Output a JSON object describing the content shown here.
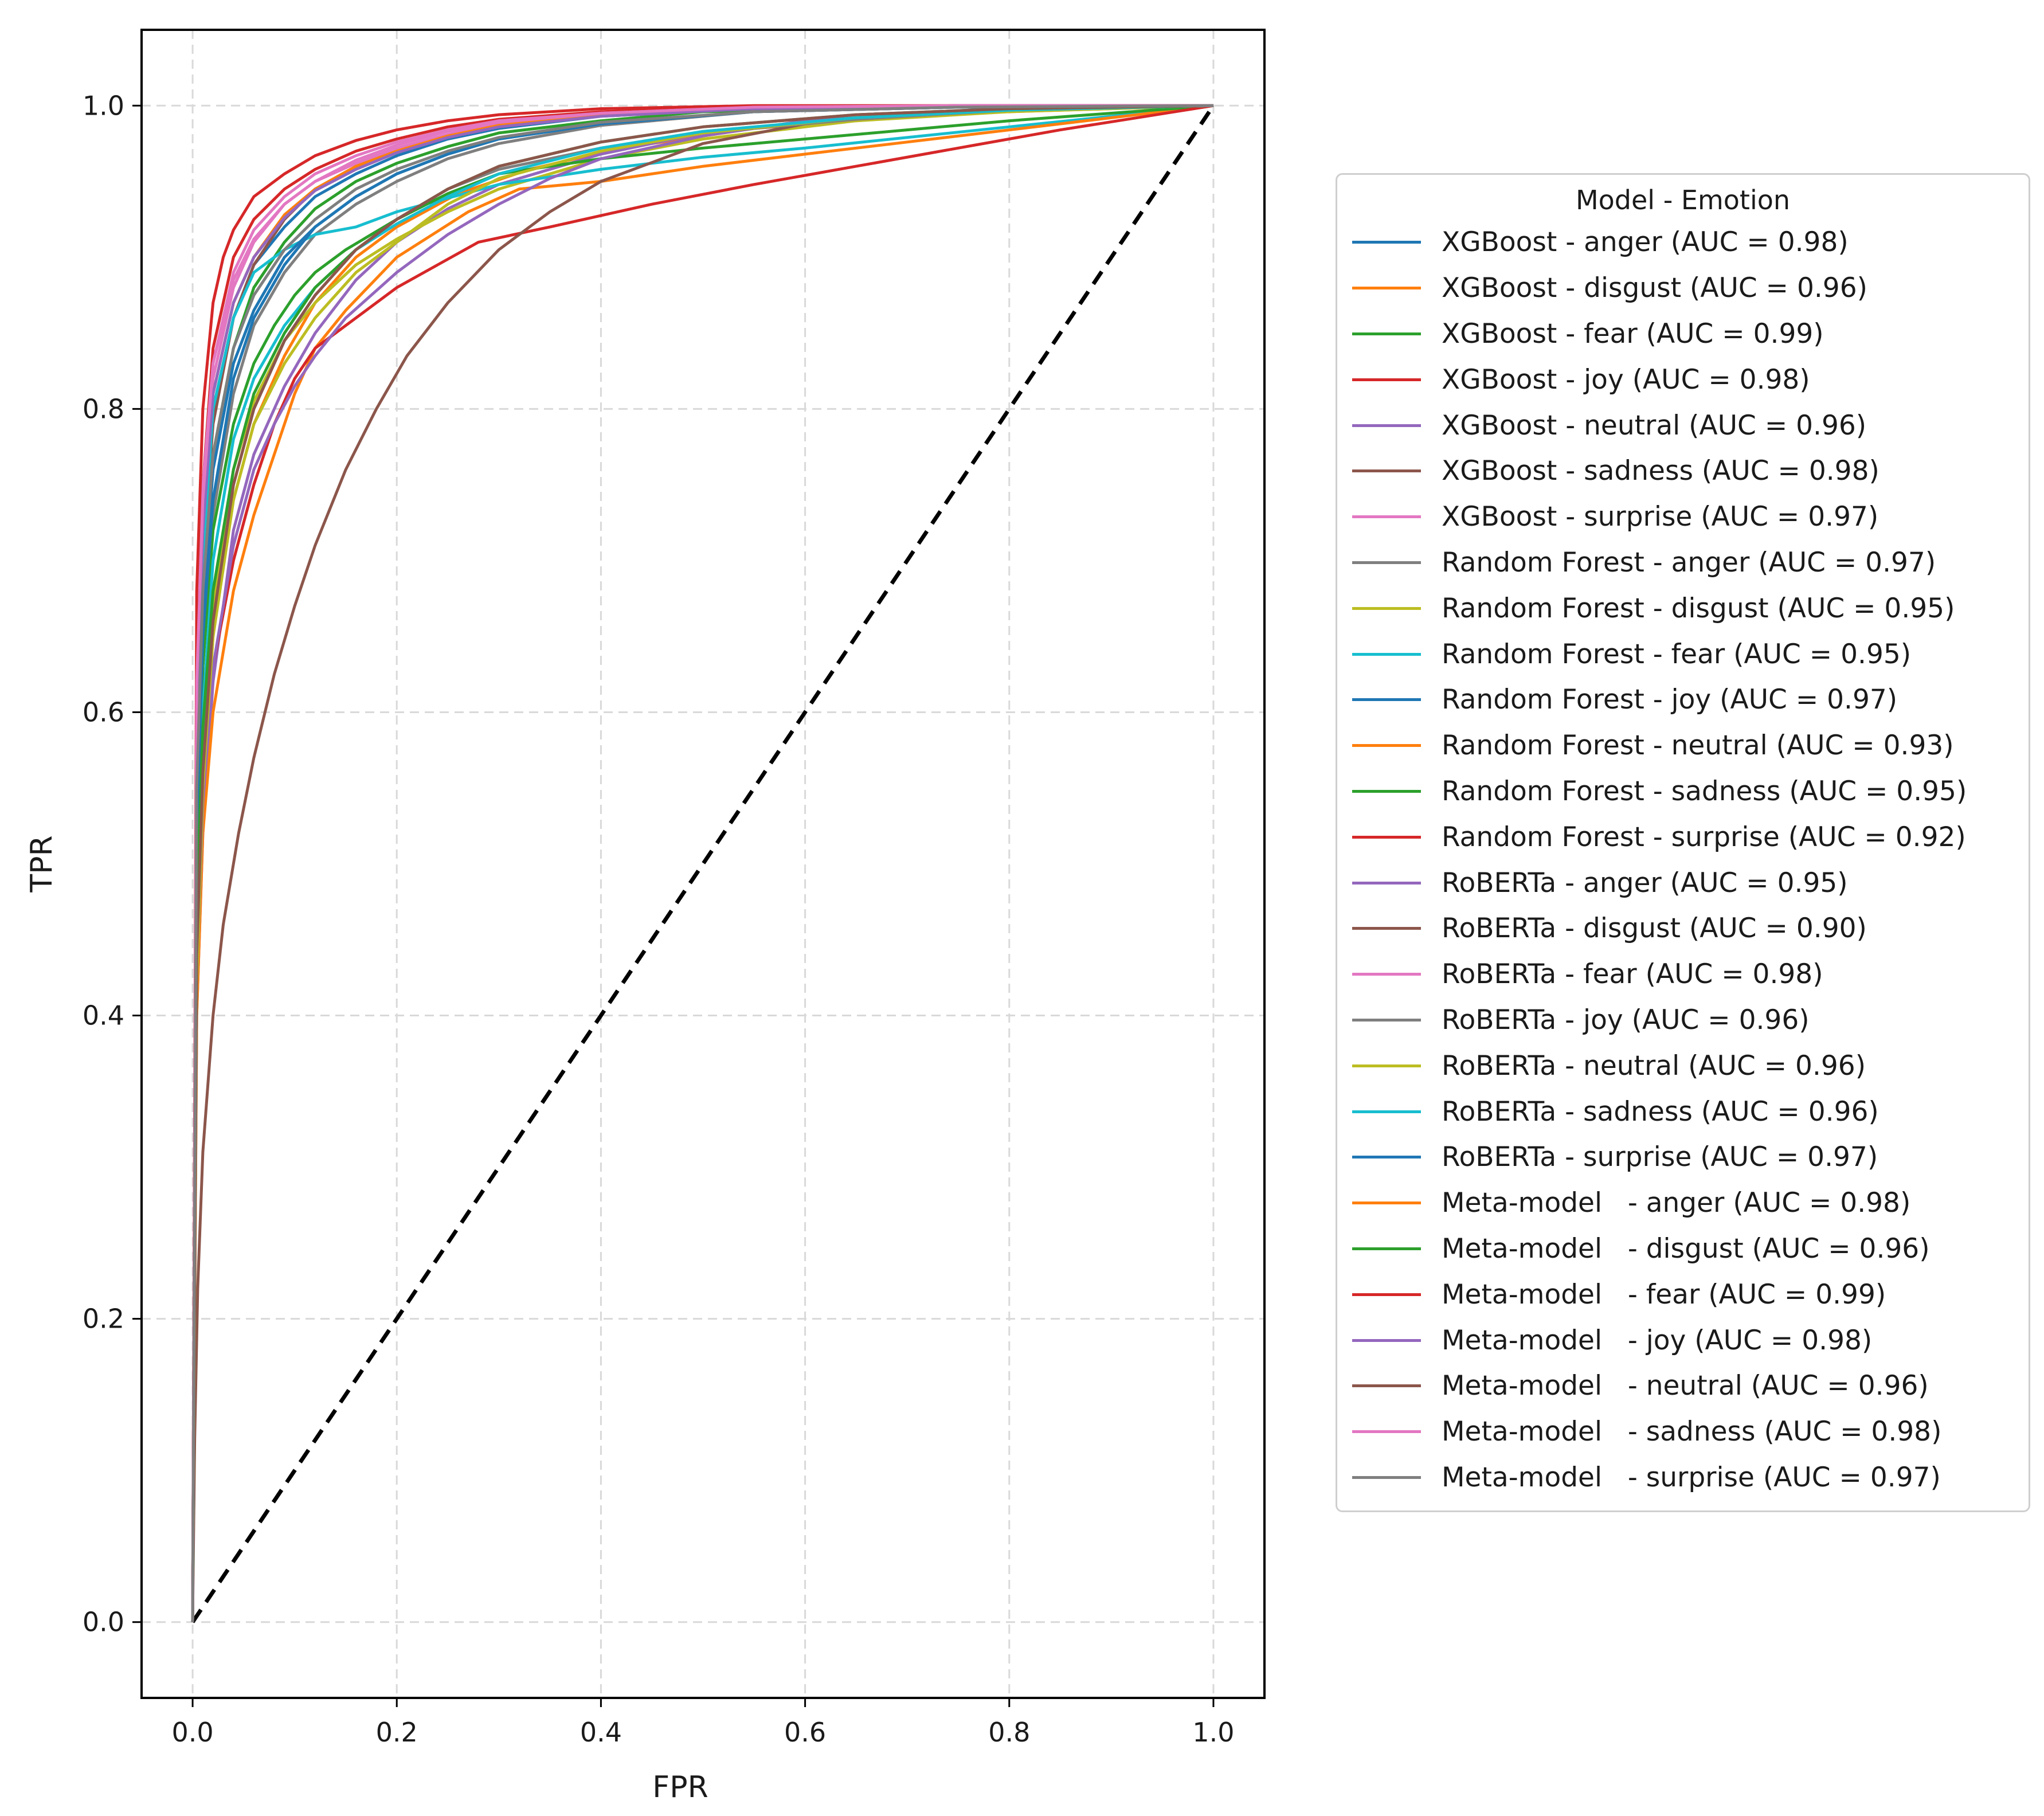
{
  "chart_data": {
    "type": "line",
    "title": "",
    "xlabel": "FPR",
    "ylabel": "TPR",
    "xlim": [
      -0.05,
      1.05
    ],
    "ylim": [
      -0.05,
      1.05
    ],
    "xticks": [
      "0.0",
      "0.2",
      "0.4",
      "0.6",
      "0.8",
      "1.0"
    ],
    "yticks": [
      "0.0",
      "0.2",
      "0.4",
      "0.6",
      "0.8",
      "1.0"
    ],
    "grid": true,
    "legend_title": "Model - Emotion",
    "legend_position": "right, outside plot",
    "diagonal": {
      "x": [
        0,
        1
      ],
      "y": [
        0,
        1
      ],
      "style": "dashed",
      "color": "#000000"
    },
    "series": [
      {
        "name": "XGBoost - anger (AUC = 0.98)",
        "color": "#1f77b4",
        "x": [
          0,
          0.004,
          0.01,
          0.02,
          0.04,
          0.06,
          0.09,
          0.12,
          0.16,
          0.2,
          0.25,
          0.3,
          0.4,
          0.55,
          0.75,
          1
        ],
        "y": [
          0,
          0.6,
          0.72,
          0.8,
          0.86,
          0.895,
          0.92,
          0.94,
          0.955,
          0.967,
          0.978,
          0.985,
          0.993,
          0.998,
          0.999,
          1
        ]
      },
      {
        "name": "XGBoost - disgust (AUC = 0.96)",
        "color": "#ff7f0e",
        "x": [
          0,
          0.004,
          0.01,
          0.02,
          0.04,
          0.06,
          0.09,
          0.12,
          0.16,
          0.2,
          0.26,
          0.33,
          0.42,
          0.55,
          0.75,
          1
        ],
        "y": [
          0,
          0.42,
          0.55,
          0.65,
          0.74,
          0.79,
          0.835,
          0.87,
          0.9,
          0.92,
          0.942,
          0.958,
          0.972,
          0.985,
          0.995,
          1
        ]
      },
      {
        "name": "XGBoost - fear (AUC = 0.99)",
        "color": "#2ca02c",
        "x": [
          0,
          0.004,
          0.01,
          0.02,
          0.04,
          0.06,
          0.09,
          0.12,
          0.16,
          0.2,
          0.25,
          0.3,
          0.4,
          0.5,
          0.7,
          1
        ],
        "y": [
          0,
          0.55,
          0.68,
          0.77,
          0.84,
          0.88,
          0.91,
          0.932,
          0.95,
          0.962,
          0.973,
          0.982,
          0.99,
          0.996,
          0.999,
          1
        ]
      },
      {
        "name": "XGBoost - joy (AUC = 0.98)",
        "color": "#d62728",
        "x": [
          0,
          0.004,
          0.01,
          0.02,
          0.04,
          0.06,
          0.09,
          0.12,
          0.16,
          0.2,
          0.25,
          0.3,
          0.4,
          0.55,
          0.75,
          1
        ],
        "y": [
          0,
          0.62,
          0.75,
          0.84,
          0.9,
          0.925,
          0.945,
          0.958,
          0.97,
          0.978,
          0.986,
          0.991,
          0.996,
          0.999,
          1,
          1
        ]
      },
      {
        "name": "XGBoost - neutral (AUC = 0.96)",
        "color": "#9467bd",
        "x": [
          0,
          0.004,
          0.01,
          0.02,
          0.04,
          0.06,
          0.09,
          0.12,
          0.16,
          0.2,
          0.25,
          0.3,
          0.4,
          0.5,
          0.7,
          1
        ],
        "y": [
          0,
          0.4,
          0.52,
          0.62,
          0.72,
          0.77,
          0.815,
          0.85,
          0.885,
          0.91,
          0.932,
          0.948,
          0.968,
          0.982,
          0.995,
          1
        ]
      },
      {
        "name": "XGBoost - sadness (AUC = 0.98)",
        "color": "#8c564b",
        "x": [
          0,
          0.004,
          0.01,
          0.02,
          0.04,
          0.06,
          0.09,
          0.12,
          0.16,
          0.2,
          0.25,
          0.3,
          0.4,
          0.55,
          0.75,
          1
        ],
        "y": [
          0,
          0.58,
          0.7,
          0.79,
          0.86,
          0.895,
          0.925,
          0.945,
          0.96,
          0.97,
          0.98,
          0.987,
          0.994,
          0.998,
          1,
          1
        ]
      },
      {
        "name": "XGBoost - surprise (AUC = 0.97)",
        "color": "#e377c2",
        "x": [
          0,
          0.004,
          0.01,
          0.02,
          0.04,
          0.06,
          0.09,
          0.12,
          0.16,
          0.2,
          0.25,
          0.3,
          0.4,
          0.55,
          0.75,
          1
        ],
        "y": [
          0,
          0.6,
          0.73,
          0.82,
          0.88,
          0.91,
          0.935,
          0.95,
          0.962,
          0.972,
          0.981,
          0.988,
          0.994,
          0.998,
          1,
          1
        ]
      },
      {
        "name": "Random Forest - anger (AUC = 0.97)",
        "color": "#7f7f7f",
        "x": [
          0,
          0.004,
          0.01,
          0.02,
          0.04,
          0.06,
          0.09,
          0.12,
          0.16,
          0.2,
          0.25,
          0.3,
          0.4,
          0.55,
          0.75,
          1
        ],
        "y": [
          0,
          0.5,
          0.63,
          0.73,
          0.81,
          0.855,
          0.89,
          0.915,
          0.935,
          0.95,
          0.965,
          0.975,
          0.987,
          0.996,
          0.999,
          1
        ]
      },
      {
        "name": "Random Forest - disgust (AUC = 0.95)",
        "color": "#bcbd22",
        "x": [
          0,
          0.004,
          0.01,
          0.02,
          0.04,
          0.06,
          0.09,
          0.12,
          0.16,
          0.2,
          0.25,
          0.3,
          0.4,
          0.5,
          0.65,
          0.8,
          1
        ],
        "y": [
          0,
          0.45,
          0.57,
          0.67,
          0.76,
          0.805,
          0.845,
          0.87,
          0.895,
          0.912,
          0.93,
          0.945,
          0.965,
          0.978,
          0.99,
          0.996,
          1
        ]
      },
      {
        "name": "Random Forest - fear (AUC = 0.95)",
        "color": "#17becf",
        "x": [
          0,
          0.004,
          0.01,
          0.02,
          0.04,
          0.06,
          0.09,
          0.12,
          0.16,
          0.2,
          0.3,
          0.4,
          0.5,
          0.6,
          0.8,
          1
        ],
        "y": [
          0,
          0.55,
          0.7,
          0.8,
          0.86,
          0.89,
          0.905,
          0.915,
          0.92,
          0.93,
          0.948,
          0.958,
          0.966,
          0.972,
          0.986,
          1
        ]
      },
      {
        "name": "Random Forest - joy (AUC = 0.97)",
        "color": "#1f77b4",
        "x": [
          0,
          0.004,
          0.01,
          0.02,
          0.04,
          0.06,
          0.09,
          0.12,
          0.16,
          0.2,
          0.25,
          0.3,
          0.4,
          0.55,
          0.75,
          1
        ],
        "y": [
          0,
          0.55,
          0.67,
          0.76,
          0.83,
          0.865,
          0.9,
          0.92,
          0.94,
          0.955,
          0.968,
          0.978,
          0.988,
          0.996,
          0.999,
          1
        ]
      },
      {
        "name": "Random Forest - neutral (AUC = 0.93)",
        "color": "#ff7f0e",
        "x": [
          0,
          0.004,
          0.01,
          0.02,
          0.04,
          0.06,
          0.08,
          0.1,
          0.12,
          0.15,
          0.2,
          0.27,
          0.32,
          0.4,
          0.5,
          0.6,
          0.7,
          0.8,
          0.9,
          1
        ],
        "y": [
          0,
          0.4,
          0.52,
          0.6,
          0.68,
          0.73,
          0.77,
          0.81,
          0.84,
          0.865,
          0.9,
          0.93,
          0.945,
          0.95,
          0.96,
          0.968,
          0.976,
          0.984,
          0.992,
          1
        ]
      },
      {
        "name": "Random Forest - sadness (AUC = 0.95)",
        "color": "#2ca02c",
        "x": [
          0,
          0.004,
          0.01,
          0.02,
          0.04,
          0.06,
          0.08,
          0.1,
          0.12,
          0.15,
          0.2,
          0.25,
          0.3,
          0.4,
          0.5,
          0.6,
          0.7,
          0.8,
          0.9,
          1
        ],
        "y": [
          0,
          0.5,
          0.63,
          0.72,
          0.79,
          0.83,
          0.855,
          0.875,
          0.89,
          0.905,
          0.925,
          0.942,
          0.955,
          0.965,
          0.972,
          0.978,
          0.984,
          0.99,
          0.995,
          1
        ]
      },
      {
        "name": "Random Forest - surprise (AUC = 0.92)",
        "color": "#d62728",
        "x": [
          0,
          0.004,
          0.01,
          0.02,
          0.04,
          0.06,
          0.08,
          0.1,
          0.12,
          0.16,
          0.2,
          0.24,
          0.28,
          0.35,
          0.45,
          0.55,
          0.65,
          0.75,
          0.85,
          1
        ],
        "y": [
          0,
          0.45,
          0.55,
          0.63,
          0.7,
          0.75,
          0.79,
          0.82,
          0.84,
          0.86,
          0.88,
          0.895,
          0.91,
          0.92,
          0.935,
          0.948,
          0.96,
          0.972,
          0.984,
          1
        ]
      },
      {
        "name": "RoBERTa - anger (AUC = 0.95)",
        "color": "#9467bd",
        "x": [
          0,
          0.004,
          0.01,
          0.02,
          0.04,
          0.06,
          0.08,
          0.1,
          0.12,
          0.15,
          0.2,
          0.25,
          0.3,
          0.35,
          0.4,
          0.5,
          0.6,
          0.8,
          1
        ],
        "y": [
          0,
          0.42,
          0.54,
          0.63,
          0.71,
          0.76,
          0.79,
          0.815,
          0.835,
          0.86,
          0.89,
          0.915,
          0.935,
          0.952,
          0.965,
          0.98,
          0.99,
          0.998,
          1
        ]
      },
      {
        "name": "RoBERTa - disgust (AUC = 0.90)",
        "color": "#8c564b",
        "x": [
          0,
          0.002,
          0.005,
          0.01,
          0.02,
          0.03,
          0.045,
          0.06,
          0.08,
          0.1,
          0.12,
          0.15,
          0.18,
          0.21,
          0.25,
          0.3,
          0.35,
          0.4,
          0.5,
          0.6,
          0.7,
          0.85,
          1
        ],
        "y": [
          0,
          0.12,
          0.22,
          0.31,
          0.4,
          0.46,
          0.52,
          0.57,
          0.625,
          0.67,
          0.71,
          0.76,
          0.8,
          0.835,
          0.87,
          0.905,
          0.93,
          0.95,
          0.975,
          0.988,
          0.995,
          0.999,
          1
        ]
      },
      {
        "name": "RoBERTa - fear (AUC = 0.98)",
        "color": "#e377c2",
        "x": [
          0,
          0.004,
          0.01,
          0.02,
          0.04,
          0.06,
          0.09,
          0.12,
          0.16,
          0.2,
          0.25,
          0.3,
          0.4,
          0.55,
          0.75,
          1
        ],
        "y": [
          0,
          0.62,
          0.75,
          0.83,
          0.89,
          0.918,
          0.94,
          0.955,
          0.967,
          0.976,
          0.984,
          0.99,
          0.995,
          0.999,
          1,
          1
        ]
      },
      {
        "name": "RoBERTa - joy (AUC = 0.96)",
        "color": "#7f7f7f",
        "x": [
          0,
          0.004,
          0.01,
          0.02,
          0.04,
          0.06,
          0.09,
          0.12,
          0.16,
          0.2,
          0.25,
          0.3,
          0.4,
          0.5,
          0.65,
          0.8,
          1
        ],
        "y": [
          0,
          0.45,
          0.57,
          0.66,
          0.75,
          0.8,
          0.845,
          0.875,
          0.905,
          0.925,
          0.945,
          0.958,
          0.972,
          0.982,
          0.991,
          0.997,
          1
        ]
      },
      {
        "name": "RoBERTa - neutral (AUC = 0.96)",
        "color": "#bcbd22",
        "x": [
          0,
          0.004,
          0.01,
          0.02,
          0.04,
          0.06,
          0.09,
          0.12,
          0.16,
          0.2,
          0.25,
          0.3,
          0.4,
          0.5,
          0.65,
          0.8,
          1
        ],
        "y": [
          0,
          0.42,
          0.55,
          0.65,
          0.74,
          0.79,
          0.83,
          0.86,
          0.89,
          0.91,
          0.935,
          0.952,
          0.97,
          0.982,
          0.992,
          0.997,
          1
        ]
      },
      {
        "name": "RoBERTa - sadness (AUC = 0.96)",
        "color": "#17becf",
        "x": [
          0,
          0.004,
          0.01,
          0.02,
          0.04,
          0.06,
          0.09,
          0.12,
          0.16,
          0.2,
          0.25,
          0.3,
          0.4,
          0.5,
          0.65,
          0.8,
          1
        ],
        "y": [
          0,
          0.48,
          0.6,
          0.7,
          0.78,
          0.82,
          0.855,
          0.88,
          0.905,
          0.922,
          0.94,
          0.955,
          0.972,
          0.983,
          0.992,
          0.997,
          1
        ]
      },
      {
        "name": "RoBERTa - surprise (AUC = 0.97)",
        "color": "#1f77b4",
        "x": [
          0,
          0.004,
          0.01,
          0.02,
          0.04,
          0.06,
          0.09,
          0.12,
          0.16,
          0.2,
          0.25,
          0.3,
          0.4,
          0.55,
          0.75,
          1
        ],
        "y": [
          0,
          0.52,
          0.65,
          0.74,
          0.82,
          0.86,
          0.895,
          0.92,
          0.94,
          0.955,
          0.968,
          0.978,
          0.988,
          0.996,
          0.999,
          1
        ]
      },
      {
        "name": "Meta-model   - anger (AUC = 0.98)",
        "color": "#ff7f0e",
        "x": [
          0,
          0.004,
          0.01,
          0.02,
          0.04,
          0.06,
          0.09,
          0.12,
          0.16,
          0.2,
          0.25,
          0.3,
          0.4,
          0.55,
          0.75,
          1
        ],
        "y": [
          0,
          0.6,
          0.73,
          0.81,
          0.87,
          0.9,
          0.928,
          0.945,
          0.96,
          0.97,
          0.98,
          0.987,
          0.994,
          0.998,
          1,
          1
        ]
      },
      {
        "name": "Meta-model   - disgust (AUC = 0.96)",
        "color": "#2ca02c",
        "x": [
          0,
          0.004,
          0.01,
          0.02,
          0.04,
          0.06,
          0.09,
          0.12,
          0.16,
          0.2,
          0.25,
          0.3,
          0.4,
          0.5,
          0.65,
          0.8,
          1
        ],
        "y": [
          0,
          0.47,
          0.59,
          0.68,
          0.76,
          0.81,
          0.85,
          0.88,
          0.905,
          0.925,
          0.945,
          0.96,
          0.976,
          0.986,
          0.994,
          0.998,
          1
        ]
      },
      {
        "name": "Meta-model   - fear (AUC = 0.99)",
        "color": "#d62728",
        "x": [
          0,
          0.004,
          0.01,
          0.02,
          0.03,
          0.04,
          0.06,
          0.09,
          0.12,
          0.16,
          0.2,
          0.25,
          0.3,
          0.4,
          0.55,
          0.75,
          1
        ],
        "y": [
          0,
          0.68,
          0.8,
          0.87,
          0.9,
          0.918,
          0.94,
          0.955,
          0.967,
          0.977,
          0.984,
          0.99,
          0.994,
          0.998,
          1,
          1,
          1
        ]
      },
      {
        "name": "Meta-model   - joy (AUC = 0.98)",
        "color": "#9467bd",
        "x": [
          0,
          0.004,
          0.01,
          0.02,
          0.04,
          0.06,
          0.09,
          0.12,
          0.16,
          0.2,
          0.25,
          0.3,
          0.4,
          0.55,
          0.75,
          1
        ],
        "y": [
          0,
          0.6,
          0.72,
          0.81,
          0.87,
          0.9,
          0.926,
          0.944,
          0.958,
          0.969,
          0.979,
          0.986,
          0.993,
          0.998,
          1,
          1
        ]
      },
      {
        "name": "Meta-model   - neutral (AUC = 0.96)",
        "color": "#8c564b",
        "x": [
          0,
          0.004,
          0.01,
          0.02,
          0.04,
          0.06,
          0.09,
          0.12,
          0.16,
          0.2,
          0.25,
          0.3,
          0.4,
          0.5,
          0.65,
          0.8,
          1
        ],
        "y": [
          0,
          0.44,
          0.56,
          0.66,
          0.75,
          0.8,
          0.845,
          0.875,
          0.905,
          0.925,
          0.945,
          0.96,
          0.976,
          0.986,
          0.994,
          0.998,
          1
        ]
      },
      {
        "name": "Meta-model   - sadness (AUC = 0.98)",
        "color": "#e377c2",
        "x": [
          0,
          0.004,
          0.01,
          0.02,
          0.04,
          0.06,
          0.09,
          0.12,
          0.16,
          0.2,
          0.25,
          0.3,
          0.4,
          0.55,
          0.75,
          1
        ],
        "y": [
          0,
          0.62,
          0.74,
          0.83,
          0.885,
          0.912,
          0.935,
          0.95,
          0.964,
          0.974,
          0.983,
          0.989,
          0.995,
          0.999,
          1,
          1
        ]
      },
      {
        "name": "Meta-model   - surprise (AUC = 0.97)",
        "color": "#7f7f7f",
        "x": [
          0,
          0.004,
          0.01,
          0.02,
          0.04,
          0.06,
          0.09,
          0.12,
          0.16,
          0.2,
          0.25,
          0.3,
          0.4,
          0.55,
          0.75,
          1
        ],
        "y": [
          0,
          0.55,
          0.68,
          0.77,
          0.84,
          0.875,
          0.905,
          0.925,
          0.945,
          0.958,
          0.97,
          0.979,
          0.989,
          0.996,
          0.999,
          1
        ]
      }
    ]
  }
}
